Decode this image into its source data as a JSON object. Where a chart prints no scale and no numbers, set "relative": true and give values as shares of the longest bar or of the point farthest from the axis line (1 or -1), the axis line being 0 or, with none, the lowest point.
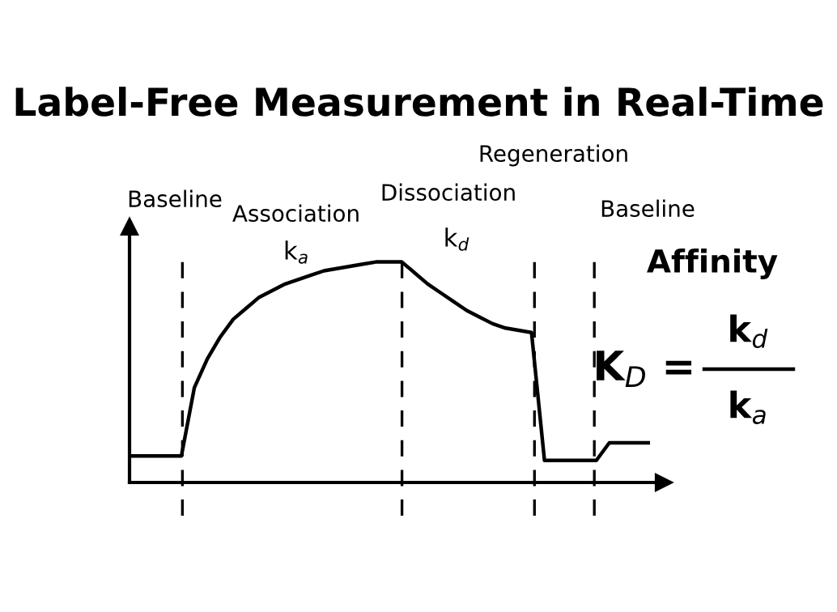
{
  "chart_data": {
    "type": "line",
    "relative": true,
    "title": "Label-Free Measurement in Real-Time",
    "categories": [
      null,
      null,
      null,
      null,
      null,
      null,
      null,
      null,
      null,
      null,
      null,
      null,
      null,
      null,
      null,
      null,
      null,
      null,
      null,
      null,
      null,
      null,
      null,
      null,
      null,
      null,
      null,
      null,
      null,
      null,
      null,
      null,
      null,
      null,
      null,
      null,
      null,
      null,
      null,
      null,
      null
    ],
    "series": [
      {
        "color": "#000000",
        "values": [
          0.12,
          0.12,
          0.12,
          0.12,
          0.12,
          0.43,
          0.56,
          0.66,
          0.74,
          0.79,
          0.84,
          0.87,
          0.9,
          0.92,
          0.94,
          0.96,
          0.97,
          0.98,
          0.99,
          1.0,
          1.0,
          1.0,
          0.95,
          0.9,
          0.86,
          0.82,
          0.78,
          0.75,
          0.72,
          0.7,
          0.69,
          0.68,
          0.1,
          0.1,
          0.1,
          0.1,
          0.1,
          0.18,
          0.18,
          0.18,
          0.18
        ]
      }
    ],
    "annotations": [
      "Baseline",
      "Association",
      "k$_{a}$",
      "Dissociation",
      "k$_{d}$",
      "Regeneration",
      "Baseline",
      "Affinity",
      "K$_{D}$ =",
      "k$_{d}$",
      "k$_{a}$"
    ],
    "grid": "x",
    "legend": false,
    "tick_labels": false,
    "line_style": "solid"
  }
}
